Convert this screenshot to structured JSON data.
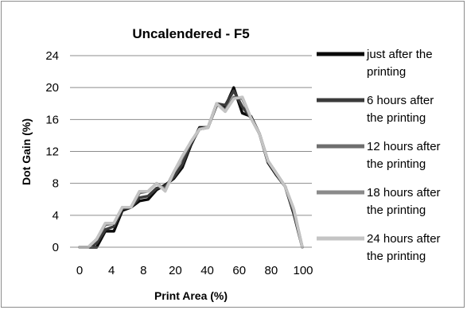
{
  "chart_data": {
    "type": "line",
    "title": "Uncalendered - F5",
    "xlabel": "Print Area (%)",
    "ylabel": "Dot Gain (%)",
    "x_ticks": [
      "0",
      "4",
      "8",
      "20",
      "40",
      "60",
      "80",
      "100"
    ],
    "y_ticks": [
      "0",
      "4",
      "8",
      "12",
      "16",
      "20",
      "24"
    ],
    "ylim": [
      0,
      24
    ],
    "grid": "horizontal",
    "legend_position": "right",
    "x": [
      "0",
      "1",
      "2",
      "3",
      "4",
      "5",
      "6",
      "7",
      "8",
      "9",
      "10",
      "15",
      "20",
      "25",
      "30",
      "35",
      "40",
      "45",
      "50",
      "55",
      "60",
      "70",
      "80",
      "85",
      "90",
      "95",
      "100"
    ],
    "series": [
      {
        "name": "just after the printing",
        "color": "#0a0a0a",
        "values": [
          0,
          0,
          0,
          2,
          2,
          4.6,
          5,
          5.8,
          6,
          7.2,
          7.8,
          8.6,
          10,
          12.8,
          15,
          15,
          17.8,
          17.6,
          20,
          16.8,
          16.4,
          14.2,
          10.6,
          9,
          7.6,
          4.2,
          0
        ]
      },
      {
        "name": "6 hours after the printing",
        "color": "#3a3a3a",
        "values": [
          0,
          0,
          0.5,
          2.2,
          2.6,
          4.8,
          5,
          6.2,
          6.4,
          7.4,
          7.6,
          8.8,
          10.4,
          13,
          14.8,
          15,
          18,
          17.8,
          19.6,
          17.6,
          16.2,
          14.2,
          10.8,
          9.2,
          7.6,
          4.4,
          0
        ]
      },
      {
        "name": "12 hours after the printing",
        "color": "#6e6e6e",
        "values": [
          0,
          0,
          1,
          2.8,
          3,
          5,
          5,
          6.8,
          7,
          8,
          7.2,
          9.4,
          11.2,
          13.2,
          14.8,
          15,
          18,
          17.2,
          18.8,
          18.6,
          16.2,
          14.2,
          10.8,
          9.2,
          7.6,
          4.6,
          0
        ]
      },
      {
        "name": "18 hours after the printing",
        "color": "#8a8a8a",
        "values": [
          0,
          0,
          1,
          3,
          3,
          5,
          5,
          7,
          7,
          8,
          7.2,
          9.4,
          11.4,
          13.2,
          14.8,
          15,
          18,
          17,
          18.6,
          18.8,
          16.2,
          14.2,
          10.8,
          9.2,
          7.6,
          4.8,
          0
        ]
      },
      {
        "name": "24 hours after the printing",
        "color": "#c4c4c4",
        "values": [
          0,
          0,
          1,
          3,
          3,
          5,
          5,
          7,
          7,
          8,
          7,
          9.4,
          11.4,
          13.2,
          14.8,
          15,
          18,
          17,
          18.6,
          18.8,
          16.2,
          14.2,
          10.8,
          9.2,
          7.6,
          4.8,
          0
        ]
      }
    ]
  }
}
